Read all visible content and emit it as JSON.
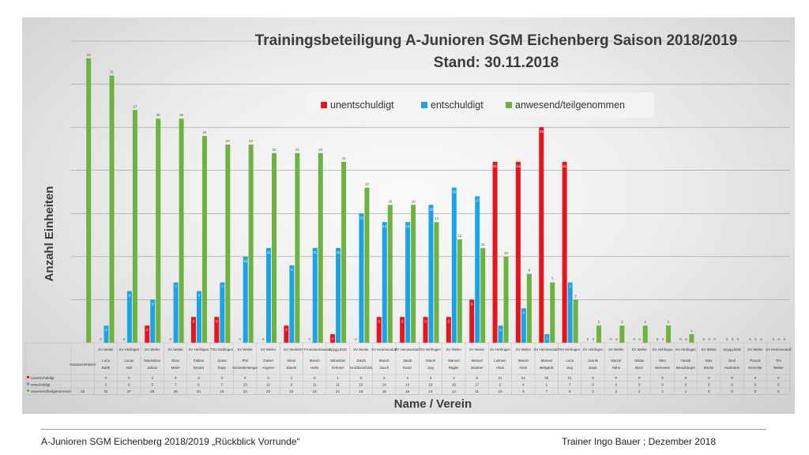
{
  "chart_data": {
    "type": "bar",
    "title": "Trainingsbeteiligung A-Junioren SGM Eichenberg Saison 2018/2019",
    "subtitle": "Stand: 30.11.2018",
    "xlabel": "Name / Verein",
    "ylabel": "Anzahl Einheiten",
    "ylim": [
      0,
      35
    ],
    "grid": true,
    "legend_position": "top-right",
    "colors": {
      "unentschuldigt": "#e8141c",
      "entschuldigt": "#1aa3e8",
      "anwesend": "#6db33f"
    },
    "categories": [
      {
        "club": "",
        "first": "Gesamteinheiten",
        "last": ""
      },
      {
        "club": "SV Weiler",
        "first": "Luca",
        "last": "Barth"
      },
      {
        "club": "SV Hirrlingen",
        "first": "Lucas",
        "last": "Noll"
      },
      {
        "club": "SV Weiler",
        "first": "Maximilian",
        "last": "Jahraz"
      },
      {
        "club": "SV Weiler",
        "first": "Elias",
        "last": "Maier"
      },
      {
        "club": "SV Hirrlingen",
        "first": "Fabian",
        "last": "Emard"
      },
      {
        "club": "TSV Dettingen",
        "first": "Jonas",
        "last": "Kapp"
      },
      {
        "club": "SV Weiler",
        "first": "Phil",
        "last": "Schmalenberger"
      },
      {
        "club": "SV Weiler",
        "first": "Daniel",
        "last": "Angerer"
      },
      {
        "club": "SV Weiler",
        "first": "Kilian",
        "last": "Eberle"
      },
      {
        "club": "SV Frommenhausen",
        "first": "Marvin",
        "last": "Hahn"
      },
      {
        "club": "Spygg BSD",
        "first": "Sebastian",
        "last": "Schnierl"
      },
      {
        "club": "SV Weiler",
        "first": "Jakob",
        "last": "Großkretzfurth"
      },
      {
        "club": "SV Hemmendorf",
        "first": "Marvin",
        "last": "Jauch"
      },
      {
        "club": "SV Hemmendorf",
        "first": "Jakob",
        "last": "Kranz"
      },
      {
        "club": "SV Hirrlingen",
        "first": "Simon",
        "last": "Zug"
      },
      {
        "club": "SV Weiler",
        "first": "Manuel",
        "last": "Rägler"
      },
      {
        "club": "SV Weiler",
        "first": "Manuel",
        "last": "Günther"
      },
      {
        "club": "SV Hirrlingen",
        "first": "Lukmen",
        "last": "Akssi"
      },
      {
        "club": "SV Weiler",
        "first": "Marvin",
        "last": "Klein"
      },
      {
        "club": "SV Hemmendorf",
        "first": "Manuel",
        "last": "Bellgardt"
      },
      {
        "club": "SV Hirrlingen",
        "first": "Luca",
        "last": "Zug"
      },
      {
        "club": "SV Hirrlingen",
        "first": "Jannik",
        "last": "Daub"
      },
      {
        "club": "SV Weiler",
        "first": "Marcel",
        "last": "Hahn"
      },
      {
        "club": "SV Weiler",
        "first": "Niklas",
        "last": "Banz"
      },
      {
        "club": "SV Hirrlingen",
        "first": "Niko",
        "last": "Nemesek"
      },
      {
        "club": "SV Hirrlingen",
        "first": "Yannik",
        "last": "Brenzberger"
      },
      {
        "club": "SV Weiler",
        "first": "Max",
        "last": "Binder"
      },
      {
        "club": "Spygg BSD",
        "first": "Emil",
        "last": "Hartmann"
      },
      {
        "club": "SV Weiler",
        "first": "Pascal",
        "last": "Semmler"
      },
      {
        "club": "SV Hemmendorf",
        "first": "Tim",
        "last": "Walter"
      }
    ],
    "series": [
      {
        "name": "unentschuldigt",
        "color": "#e8141c",
        "values": [
          null,
          0,
          0,
          2,
          0,
          3,
          3,
          0,
          0,
          2,
          0,
          1,
          0,
          3,
          3,
          3,
          3,
          5,
          21,
          21,
          25,
          21,
          0,
          0,
          0,
          0,
          0,
          0,
          0,
          0,
          0
        ]
      },
      {
        "name": "entschuldigt",
        "color": "#1aa3e8",
        "values": [
          null,
          2,
          6,
          5,
          7,
          6,
          7,
          10,
          11,
          9,
          11,
          11,
          15,
          14,
          14,
          16,
          18,
          17,
          2,
          4,
          1,
          7,
          0,
          0,
          0,
          0,
          0,
          0,
          0,
          0,
          0
        ]
      },
      {
        "name": "anwesend/teilgenommen",
        "color": "#6db33f",
        "values": [
          33,
          31,
          27,
          26,
          26,
          24,
          23,
          23,
          22,
          22,
          22,
          21,
          18,
          16,
          16,
          14,
          12,
          11,
          10,
          8,
          7,
          5,
          2,
          2,
          2,
          2,
          1,
          0,
          0,
          0,
          0
        ]
      }
    ],
    "table_row_labels": [
      "unentschuldigt",
      "entschuldigt",
      "anwesend/teilgenommen"
    ]
  },
  "footer": {
    "left": "A-Junioren SGM Eichenberg 2018/2019 „Rückblick Vorrunde“",
    "right": "Trainer Ingo Bauer ; Dezember 2018"
  }
}
